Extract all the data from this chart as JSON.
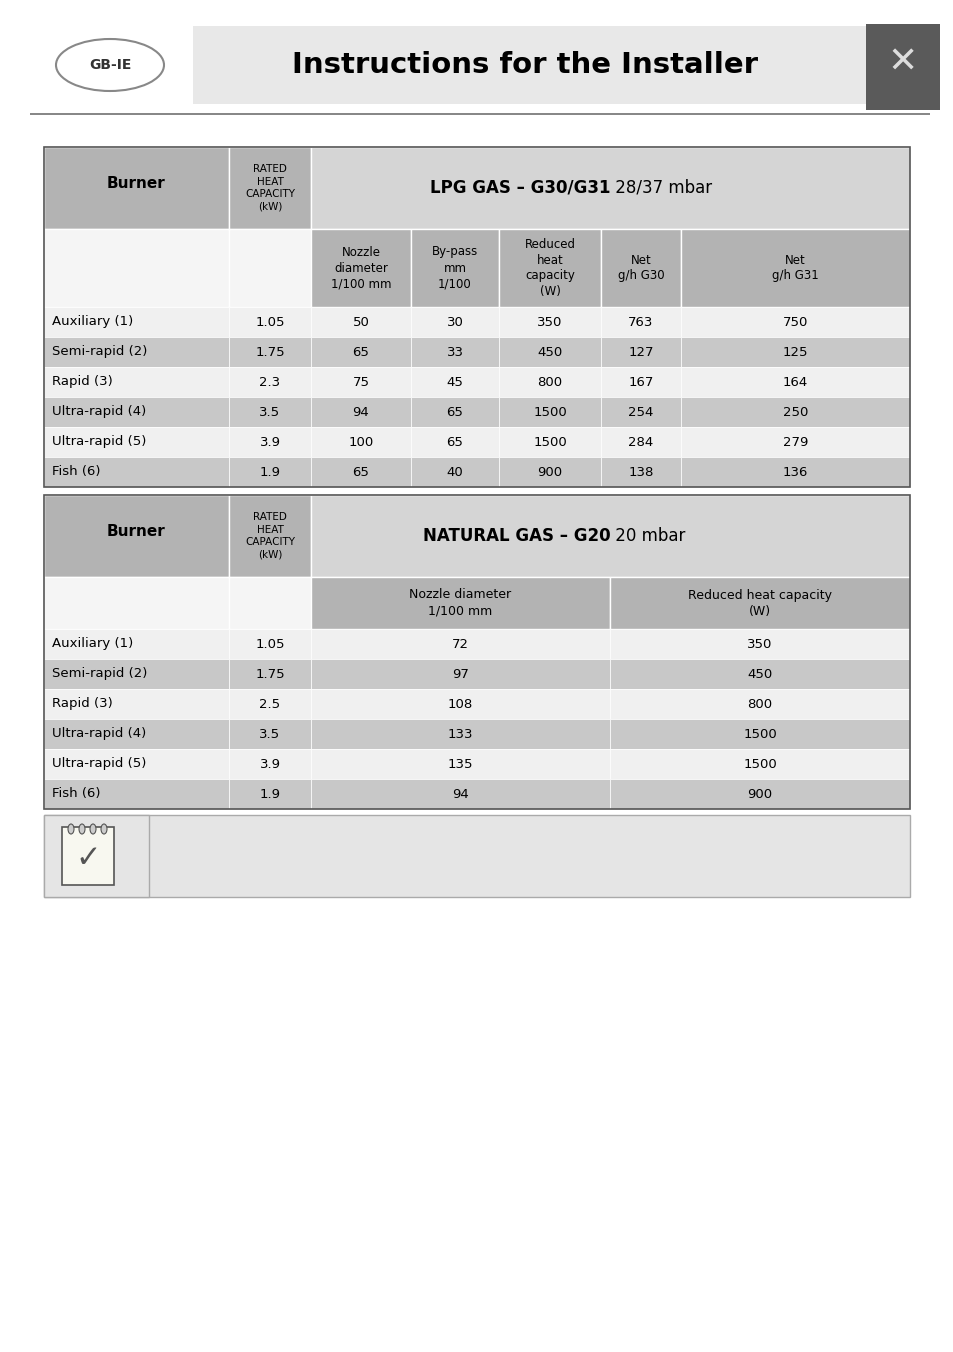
{
  "title": "Instructions for the Installer",
  "bg_color": "#ffffff",
  "header_bg": "#e0e0e0",
  "table_header_bg": "#b3b3b3",
  "row_dark": "#c8c8c8",
  "row_light": "#f0f0f0",
  "border_color": "#333333",
  "lpg_header_label_bold": "LPG GAS – G30/G31",
  "lpg_header_label_normal": " 28/37 mbar",
  "lpg_col_headers": [
    "Nozzle\ndiameter\n1/100 mm",
    "By-pass\nmm\n1/100",
    "Reduced\nheat\ncapacity\n(W)",
    "Net\ng/h G30",
    "Net\ng/h G31"
  ],
  "lpg_burners": [
    "Auxiliary (1)",
    "Semi-rapid (2)",
    "Rapid (3)",
    "Ultra-rapid (4)",
    "Ultra-rapid (5)",
    "Fish (6)"
  ],
  "lpg_rated": [
    "1.05",
    "1.75",
    "2.3",
    "3.5",
    "3.9",
    "1.9"
  ],
  "lpg_data": [
    [
      "50",
      "30",
      "350",
      "763",
      "750"
    ],
    [
      "65",
      "33",
      "450",
      "127",
      "125"
    ],
    [
      "75",
      "45",
      "800",
      "167",
      "164"
    ],
    [
      "94",
      "65",
      "1500",
      "254",
      "250"
    ],
    [
      "100",
      "65",
      "1500",
      "284",
      "279"
    ],
    [
      "65",
      "40",
      "900",
      "138",
      "136"
    ]
  ],
  "ng_header_label_bold": "NATURAL GAS – G20",
  "ng_header_label_normal": " 20 mbar",
  "ng_col_headers": [
    "Nozzle diameter\n1/100 mm",
    "Reduced heat capacity\n(W)"
  ],
  "ng_burners": [
    "Auxiliary (1)",
    "Semi-rapid (2)",
    "Rapid (3)",
    "Ultra-rapid (4)",
    "Ultra-rapid (5)",
    "Fish (6)"
  ],
  "ng_rated": [
    "1.05",
    "1.75",
    "2.5",
    "3.5",
    "3.9",
    "1.9"
  ],
  "ng_data": [
    [
      "72",
      "350"
    ],
    [
      "97",
      "450"
    ],
    [
      "108",
      "800"
    ],
    [
      "133",
      "1500"
    ],
    [
      "135",
      "1500"
    ],
    [
      "94",
      "900"
    ]
  ]
}
